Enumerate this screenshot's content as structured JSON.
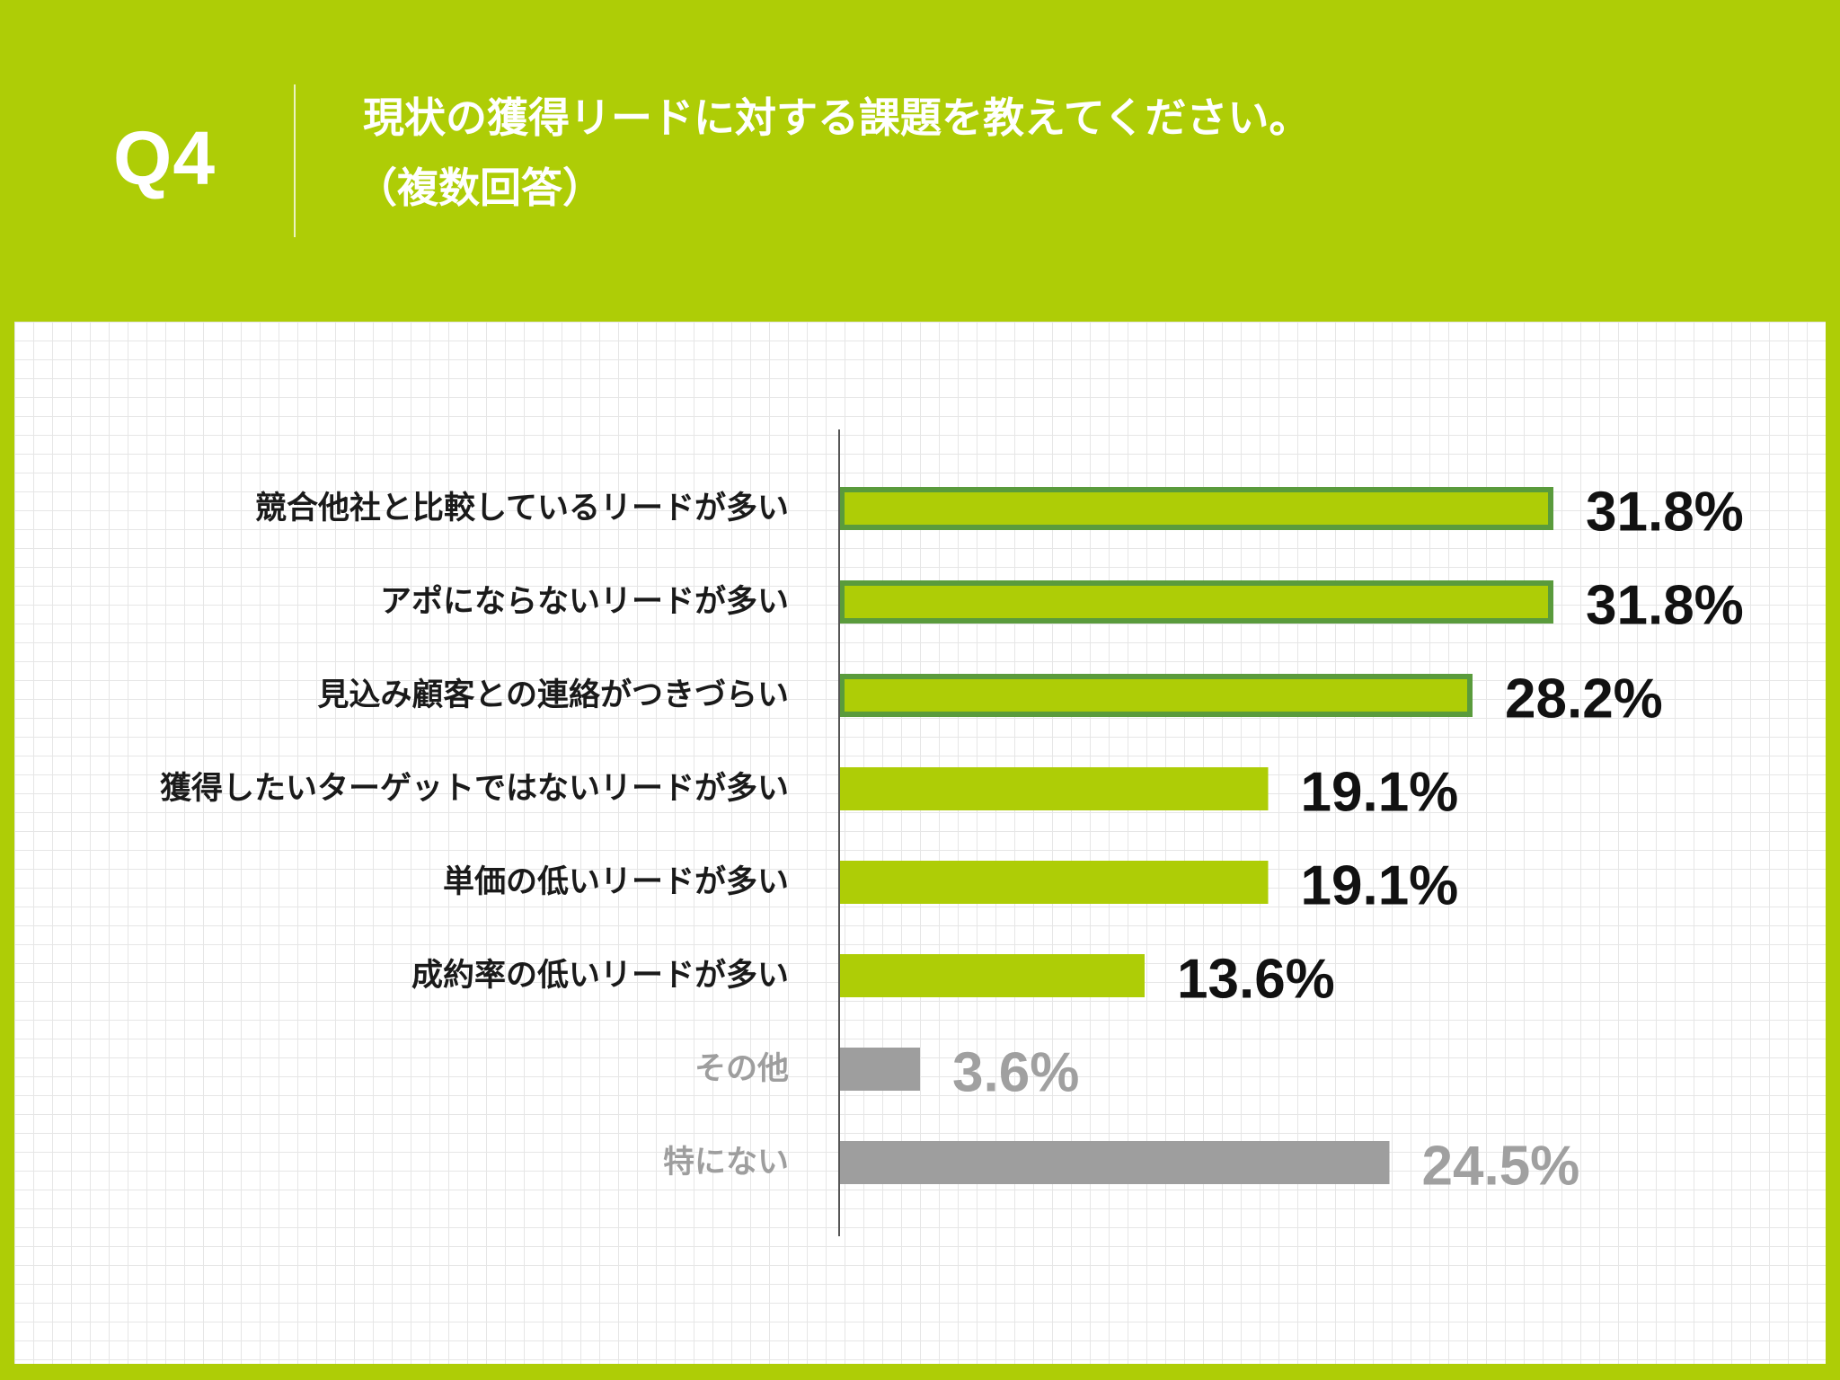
{
  "header": {
    "question_number": "Q4",
    "title": "現状の獲得リードに対する課題を教えてください。",
    "subtitle": "（複数回答）"
  },
  "colors": {
    "background": "#aecd06",
    "bar_fill": "#aecd06",
    "bar_highlight_border": "#5a9b3c",
    "bar_gray": "#9e9e9e",
    "value_dark": "#111111",
    "value_gray": "#a0a0a0",
    "label_dark": "#1a1a1a",
    "label_gray": "#9e9e9e",
    "axis": "#555555"
  },
  "chart_data": {
    "type": "bar",
    "orientation": "horizontal",
    "categories": [
      "競合他社と比較しているリードが多い",
      "アポにならないリードが多い",
      "見込み顧客との連絡がつきづらい",
      "獲得したいターゲットではないリードが多い",
      "単価の低いリードが多い",
      "成約率の低いリードが多い",
      "その他",
      "特にない"
    ],
    "values": [
      31.8,
      31.8,
      28.2,
      19.1,
      19.1,
      13.6,
      3.6,
      24.5
    ],
    "value_labels": [
      "31.8%",
      "31.8%",
      "28.2%",
      "19.1%",
      "19.1%",
      "13.6%",
      "3.6%",
      "24.5%"
    ],
    "highlighted": [
      true,
      true,
      true,
      false,
      false,
      false,
      false,
      false
    ],
    "muted": [
      false,
      false,
      false,
      false,
      false,
      false,
      true,
      true
    ],
    "unit": "%",
    "xlim": [
      0,
      100
    ],
    "grid": true
  }
}
